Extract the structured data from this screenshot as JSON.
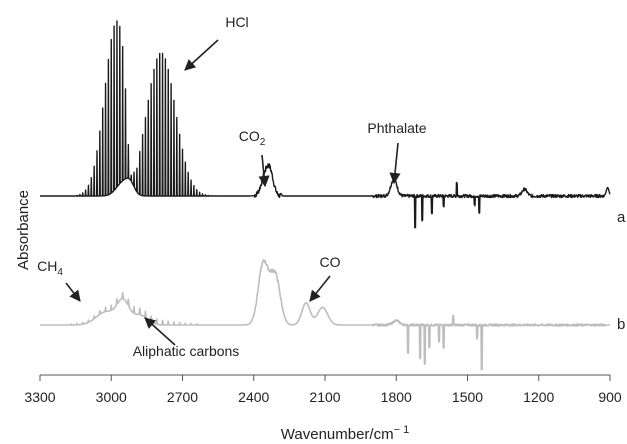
{
  "chart_data": {
    "type": "line",
    "title": "",
    "xlabel": "Wavenumber/cm",
    "xlabel_sup": "− 1",
    "ylabel": "Absorbance",
    "xlim": [
      3300,
      900
    ],
    "x_reversed": true,
    "x_ticks": [
      3300,
      3000,
      2700,
      2400,
      2100,
      1800,
      1500,
      1200,
      900
    ],
    "x_tick_labels": [
      "3300",
      "3000",
      "2700",
      "2400",
      "2100",
      "1800",
      "1500",
      "1200",
      "900"
    ],
    "y_ticks_shown": false,
    "grid": false,
    "series": [
      {
        "name": "a",
        "color": "#1a1a1a",
        "baseline": 0.0,
        "features": [
          {
            "kind": "comb",
            "from": 3150,
            "to": 2540,
            "step": 12,
            "center": 2890,
            "dip": [
              2940,
              2890
            ],
            "peak": 0.98
          },
          {
            "kind": "band",
            "center": 2950,
            "width": 40,
            "height": 0.08
          },
          {
            "kind": "band",
            "center": 2920,
            "width": 25,
            "height": 0.05
          },
          {
            "kind": "band",
            "center": 2350,
            "width": 25,
            "height": 0.12
          },
          {
            "kind": "band",
            "center": 2330,
            "width": 20,
            "height": 0.1
          },
          {
            "kind": "band",
            "center": 1810,
            "width": 18,
            "height": 0.1
          },
          {
            "kind": "band",
            "center": 1260,
            "width": 15,
            "height": 0.04
          },
          {
            "kind": "band",
            "center": 910,
            "width": 8,
            "height": 0.05
          },
          {
            "kind": "spikes",
            "at": [
              1720,
              1690,
              1650,
              1600,
              1545,
              1470,
              1450
            ],
            "heights": [
              -0.18,
              -0.14,
              -0.1,
              -0.06,
              0.08,
              -0.05,
              -0.1
            ]
          }
        ]
      },
      {
        "name": "b",
        "color": "#bdbdbd",
        "baseline": 0.0,
        "features": [
          {
            "kind": "comb",
            "from": 3180,
            "to": 2620,
            "step": 24,
            "center": 2900,
            "dip": [
              0,
              0
            ],
            "peak": 0.06
          },
          {
            "kind": "band",
            "center": 3020,
            "width": 60,
            "height": 0.12
          },
          {
            "kind": "band",
            "center": 2950,
            "width": 35,
            "height": 0.2
          },
          {
            "kind": "band",
            "center": 2880,
            "width": 45,
            "height": 0.09
          },
          {
            "kind": "band",
            "center": 2360,
            "width": 30,
            "height": 0.55
          },
          {
            "kind": "band",
            "center": 2310,
            "width": 30,
            "height": 0.45
          },
          {
            "kind": "band",
            "center": 2180,
            "width": 25,
            "height": 0.2
          },
          {
            "kind": "band",
            "center": 2110,
            "width": 30,
            "height": 0.16
          },
          {
            "kind": "band",
            "center": 1800,
            "width": 20,
            "height": 0.04
          },
          {
            "kind": "spikes",
            "at": [
              1750,
              1700,
              1680,
              1660,
              1620,
              1600,
              1560,
              1460,
              1440
            ],
            "heights": [
              -0.25,
              -0.3,
              -0.35,
              -0.2,
              -0.15,
              -0.2,
              0.08,
              -0.12,
              -0.4
            ]
          }
        ]
      }
    ],
    "series_labels": [
      "a",
      "b"
    ],
    "annotations": [
      {
        "text": "HCl",
        "sub": ""
      },
      {
        "text": "CO",
        "sub": "2"
      },
      {
        "text": "Phthalate",
        "sub": ""
      },
      {
        "text": "CH",
        "sub": "4"
      },
      {
        "text": "CO",
        "sub": ""
      },
      {
        "text": "Aliphatic carbons",
        "sub": ""
      }
    ]
  }
}
